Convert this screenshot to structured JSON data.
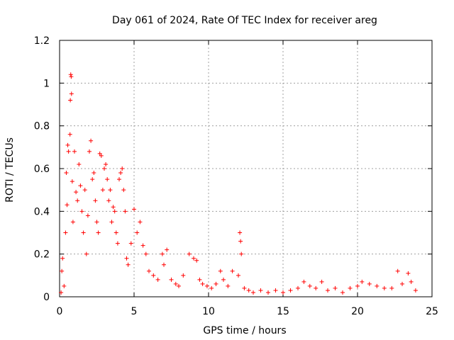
{
  "chart_data": {
    "type": "scatter",
    "title": "Day 061 of 2024, Rate Of TEC Index for receiver areg",
    "xlabel": "GPS time / hours",
    "ylabel": "ROTI / TECUs",
    "xlim": [
      0,
      25
    ],
    "ylim": [
      0,
      1.2
    ],
    "xticks": [
      "0",
      "5",
      "10",
      "15",
      "20",
      "25"
    ],
    "yticks": [
      "0",
      "0.2",
      "0.4",
      "0.6",
      "0.8",
      "1",
      "1.2"
    ],
    "grid": true,
    "marker": "+",
    "color": "#ff0000",
    "series": [
      {
        "points": [
          [
            0.1,
            0.02
          ],
          [
            0.15,
            0.12
          ],
          [
            0.2,
            0.18
          ],
          [
            0.3,
            0.05
          ],
          [
            0.4,
            0.3
          ],
          [
            0.45,
            0.58
          ],
          [
            0.5,
            0.43
          ],
          [
            0.55,
            0.71
          ],
          [
            0.6,
            0.68
          ],
          [
            0.7,
            0.76
          ],
          [
            0.72,
            0.92
          ],
          [
            0.75,
            1.04
          ],
          [
            0.78,
            1.03
          ],
          [
            0.8,
            0.95
          ],
          [
            0.85,
            0.54
          ],
          [
            0.9,
            0.35
          ],
          [
            1.0,
            0.68
          ],
          [
            1.1,
            0.49
          ],
          [
            1.2,
            0.45
          ],
          [
            1.3,
            0.62
          ],
          [
            1.4,
            0.52
          ],
          [
            1.5,
            0.4
          ],
          [
            1.6,
            0.3
          ],
          [
            1.7,
            0.5
          ],
          [
            1.8,
            0.2
          ],
          [
            1.9,
            0.38
          ],
          [
            2.0,
            0.68
          ],
          [
            2.1,
            0.73
          ],
          [
            2.2,
            0.55
          ],
          [
            2.3,
            0.58
          ],
          [
            2.4,
            0.45
          ],
          [
            2.5,
            0.35
          ],
          [
            2.6,
            0.3
          ],
          [
            2.7,
            0.67
          ],
          [
            2.8,
            0.66
          ],
          [
            2.9,
            0.5
          ],
          [
            3.0,
            0.6
          ],
          [
            3.1,
            0.62
          ],
          [
            3.2,
            0.55
          ],
          [
            3.3,
            0.45
          ],
          [
            3.4,
            0.5
          ],
          [
            3.5,
            0.35
          ],
          [
            3.6,
            0.42
          ],
          [
            3.7,
            0.4
          ],
          [
            3.8,
            0.3
          ],
          [
            3.9,
            0.25
          ],
          [
            4.0,
            0.55
          ],
          [
            4.1,
            0.58
          ],
          [
            4.2,
            0.6
          ],
          [
            4.3,
            0.5
          ],
          [
            4.4,
            0.4
          ],
          [
            4.5,
            0.18
          ],
          [
            4.6,
            0.15
          ],
          [
            4.8,
            0.25
          ],
          [
            5.0,
            0.41
          ],
          [
            5.2,
            0.3
          ],
          [
            5.4,
            0.35
          ],
          [
            5.6,
            0.24
          ],
          [
            5.8,
            0.2
          ],
          [
            6.0,
            0.12
          ],
          [
            6.3,
            0.1
          ],
          [
            6.6,
            0.08
          ],
          [
            6.9,
            0.2
          ],
          [
            7.0,
            0.15
          ],
          [
            7.2,
            0.22
          ],
          [
            7.5,
            0.08
          ],
          [
            7.8,
            0.06
          ],
          [
            8.0,
            0.05
          ],
          [
            8.3,
            0.1
          ],
          [
            8.7,
            0.2
          ],
          [
            9.0,
            0.18
          ],
          [
            9.2,
            0.17
          ],
          [
            9.4,
            0.08
          ],
          [
            9.6,
            0.06
          ],
          [
            9.9,
            0.05
          ],
          [
            10.2,
            0.04
          ],
          [
            10.5,
            0.06
          ],
          [
            10.8,
            0.12
          ],
          [
            11.0,
            0.08
          ],
          [
            11.3,
            0.05
          ],
          [
            11.6,
            0.12
          ],
          [
            12.0,
            0.1
          ],
          [
            12.1,
            0.3
          ],
          [
            12.15,
            0.26
          ],
          [
            12.2,
            0.2
          ],
          [
            12.4,
            0.04
          ],
          [
            12.7,
            0.03
          ],
          [
            13.0,
            0.02
          ],
          [
            13.5,
            0.03
          ],
          [
            14.0,
            0.02
          ],
          [
            14.5,
            0.03
          ],
          [
            15.0,
            0.02
          ],
          [
            15.5,
            0.03
          ],
          [
            16.0,
            0.04
          ],
          [
            16.4,
            0.07
          ],
          [
            16.8,
            0.05
          ],
          [
            17.2,
            0.04
          ],
          [
            17.6,
            0.07
          ],
          [
            18.0,
            0.03
          ],
          [
            18.5,
            0.04
          ],
          [
            19.0,
            0.02
          ],
          [
            19.5,
            0.04
          ],
          [
            20.0,
            0.05
          ],
          [
            20.3,
            0.07
          ],
          [
            20.8,
            0.06
          ],
          [
            21.3,
            0.05
          ],
          [
            21.8,
            0.04
          ],
          [
            22.3,
            0.04
          ],
          [
            22.7,
            0.12
          ],
          [
            23.0,
            0.06
          ],
          [
            23.4,
            0.11
          ],
          [
            23.6,
            0.07
          ],
          [
            23.9,
            0.03
          ]
        ]
      }
    ]
  }
}
